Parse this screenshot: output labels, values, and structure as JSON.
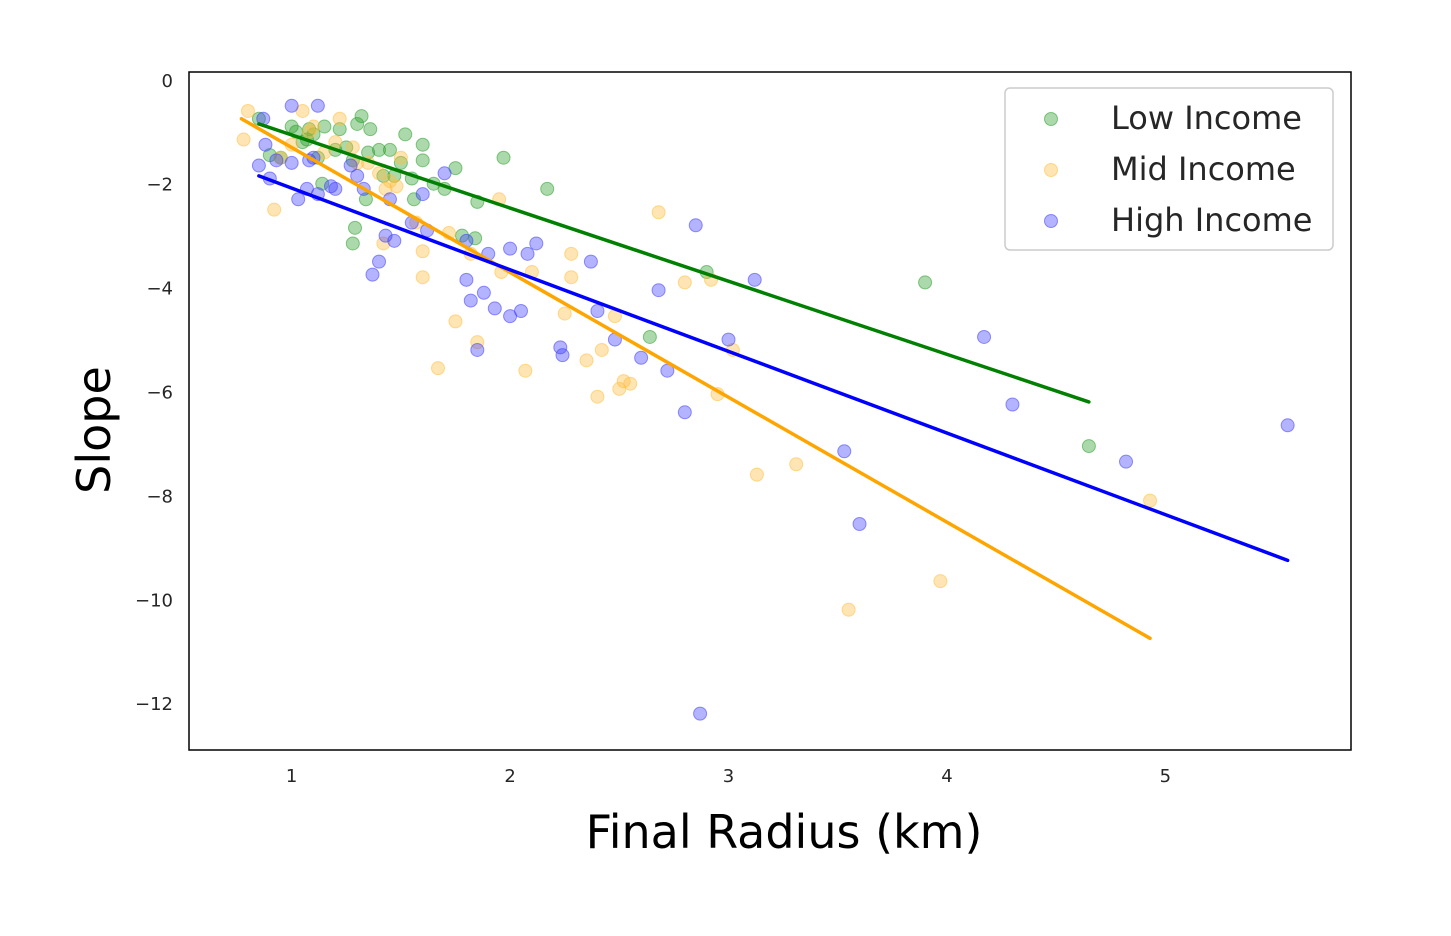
{
  "chart_data": {
    "type": "scatter",
    "title": "",
    "xlabel": "Final Radius (km)",
    "ylabel": "Slope",
    "xlim": [
      0.53,
      5.85
    ],
    "ylim": [
      -12.9,
      0.15
    ],
    "xticks": [
      1,
      2,
      3,
      4,
      5
    ],
    "yticks": [
      0,
      -2,
      -4,
      -6,
      -8,
      -10,
      -12
    ],
    "xtick_labels": [
      "1",
      "2",
      "3",
      "4",
      "5"
    ],
    "ytick_labels": [
      "0",
      "−2",
      "−4",
      "−6",
      "−8",
      "−10",
      "−12"
    ],
    "grid": false,
    "legend_position": "top-right",
    "series": [
      {
        "name": "Low Income",
        "color": "#008000",
        "point_color": "#2ca02c",
        "points": [
          [
            0.85,
            -0.75
          ],
          [
            0.9,
            -1.45
          ],
          [
            0.95,
            -1.5
          ],
          [
            1.0,
            -0.9
          ],
          [
            1.02,
            -1.0
          ],
          [
            1.05,
            -1.2
          ],
          [
            1.08,
            -0.95
          ],
          [
            1.1,
            -1.05
          ],
          [
            1.12,
            -1.5
          ],
          [
            1.15,
            -0.9
          ],
          [
            1.2,
            -1.35
          ],
          [
            1.22,
            -0.95
          ],
          [
            1.25,
            -1.3
          ],
          [
            1.28,
            -1.55
          ],
          [
            1.3,
            -0.85
          ],
          [
            1.32,
            -0.7
          ],
          [
            1.35,
            -1.4
          ],
          [
            1.36,
            -0.95
          ],
          [
            1.4,
            -1.35
          ],
          [
            1.42,
            -1.85
          ],
          [
            1.45,
            -1.35
          ],
          [
            1.47,
            -1.85
          ],
          [
            1.5,
            -1.6
          ],
          [
            1.52,
            -1.05
          ],
          [
            1.55,
            -1.9
          ],
          [
            1.56,
            -2.3
          ],
          [
            1.6,
            -1.25
          ],
          [
            1.6,
            -1.55
          ],
          [
            1.65,
            -2.0
          ],
          [
            1.7,
            -2.1
          ],
          [
            1.75,
            -1.7
          ],
          [
            1.78,
            -3.0
          ],
          [
            1.84,
            -3.05
          ],
          [
            1.85,
            -2.35
          ],
          [
            1.97,
            -1.5
          ],
          [
            2.17,
            -2.1
          ],
          [
            1.28,
            -3.15
          ],
          [
            1.29,
            -2.85
          ],
          [
            1.34,
            -2.3
          ],
          [
            2.64,
            -4.95
          ],
          [
            2.9,
            -3.7
          ],
          [
            3.9,
            -3.9
          ],
          [
            4.65,
            -7.05
          ],
          [
            1.07,
            -1.15
          ],
          [
            1.14,
            -2.0
          ]
        ],
        "fit": [
          [
            0.85,
            -0.85
          ],
          [
            4.65,
            -6.2
          ]
        ]
      },
      {
        "name": "Mid Income",
        "color": "#ffa500",
        "point_color": "#ffbf40",
        "points": [
          [
            0.78,
            -1.15
          ],
          [
            0.8,
            -0.6
          ],
          [
            0.92,
            -2.5
          ],
          [
            0.95,
            -1.5
          ],
          [
            1.05,
            -0.6
          ],
          [
            1.08,
            -1.0
          ],
          [
            1.1,
            -0.9
          ],
          [
            1.15,
            -1.4
          ],
          [
            1.2,
            -1.2
          ],
          [
            1.22,
            -0.75
          ],
          [
            1.28,
            -1.3
          ],
          [
            1.35,
            -1.6
          ],
          [
            1.4,
            -1.8
          ],
          [
            1.42,
            -3.15
          ],
          [
            1.43,
            -2.1
          ],
          [
            1.45,
            -1.95
          ],
          [
            1.5,
            -1.5
          ],
          [
            1.57,
            -2.75
          ],
          [
            1.6,
            -3.3
          ],
          [
            1.6,
            -3.8
          ],
          [
            1.67,
            -5.55
          ],
          [
            1.72,
            -2.95
          ],
          [
            1.75,
            -4.65
          ],
          [
            1.82,
            -3.35
          ],
          [
            1.85,
            -5.05
          ],
          [
            1.95,
            -2.3
          ],
          [
            1.96,
            -3.7
          ],
          [
            2.07,
            -5.6
          ],
          [
            2.1,
            -3.7
          ],
          [
            2.25,
            -4.5
          ],
          [
            2.28,
            -3.35
          ],
          [
            2.28,
            -3.8
          ],
          [
            2.35,
            -5.4
          ],
          [
            2.4,
            -6.1
          ],
          [
            2.42,
            -5.2
          ],
          [
            2.48,
            -4.55
          ],
          [
            2.5,
            -5.95
          ],
          [
            2.52,
            -5.8
          ],
          [
            2.55,
            -5.85
          ],
          [
            2.68,
            -2.55
          ],
          [
            2.8,
            -3.9
          ],
          [
            2.92,
            -3.85
          ],
          [
            2.95,
            -6.05
          ],
          [
            3.02,
            -5.2
          ],
          [
            3.13,
            -7.6
          ],
          [
            3.31,
            -7.4
          ],
          [
            3.55,
            -10.2
          ],
          [
            3.97,
            -9.65
          ],
          [
            4.93,
            -8.1
          ],
          [
            1.0,
            -1.25
          ],
          [
            1.3,
            -1.6
          ],
          [
            1.48,
            -2.05
          ]
        ],
        "fit": [
          [
            0.77,
            -0.75
          ],
          [
            4.93,
            -10.75
          ]
        ]
      },
      {
        "name": "High Income",
        "color": "#0000ff",
        "point_color": "#4040ff",
        "points": [
          [
            0.85,
            -1.65
          ],
          [
            0.87,
            -0.75
          ],
          [
            0.88,
            -1.25
          ],
          [
            0.9,
            -1.9
          ],
          [
            0.93,
            -1.55
          ],
          [
            1.0,
            -0.5
          ],
          [
            1.0,
            -1.6
          ],
          [
            1.03,
            -2.3
          ],
          [
            1.07,
            -2.1
          ],
          [
            1.08,
            -1.55
          ],
          [
            1.1,
            -1.5
          ],
          [
            1.12,
            -0.5
          ],
          [
            1.12,
            -2.2
          ],
          [
            1.18,
            -2.05
          ],
          [
            1.2,
            -2.1
          ],
          [
            1.27,
            -1.65
          ],
          [
            1.3,
            -1.85
          ],
          [
            1.33,
            -2.1
          ],
          [
            1.37,
            -3.75
          ],
          [
            1.4,
            -3.5
          ],
          [
            1.43,
            -3.0
          ],
          [
            1.45,
            -2.3
          ],
          [
            1.47,
            -3.1
          ],
          [
            1.55,
            -2.75
          ],
          [
            1.6,
            -2.2
          ],
          [
            1.62,
            -2.9
          ],
          [
            1.7,
            -1.8
          ],
          [
            1.8,
            -3.85
          ],
          [
            1.8,
            -3.1
          ],
          [
            1.82,
            -4.25
          ],
          [
            1.85,
            -5.2
          ],
          [
            1.88,
            -4.1
          ],
          [
            1.9,
            -3.35
          ],
          [
            1.93,
            -4.4
          ],
          [
            2.0,
            -4.55
          ],
          [
            2.0,
            -3.25
          ],
          [
            2.05,
            -4.45
          ],
          [
            2.08,
            -3.35
          ],
          [
            2.12,
            -3.15
          ],
          [
            2.23,
            -5.15
          ],
          [
            2.24,
            -5.3
          ],
          [
            2.37,
            -3.5
          ],
          [
            2.4,
            -4.45
          ],
          [
            2.48,
            -5.0
          ],
          [
            2.6,
            -5.35
          ],
          [
            2.68,
            -4.05
          ],
          [
            2.72,
            -5.6
          ],
          [
            2.8,
            -6.4
          ],
          [
            2.85,
            -2.8
          ],
          [
            2.87,
            -12.2
          ],
          [
            3.0,
            -5.0
          ],
          [
            3.12,
            -3.85
          ],
          [
            3.53,
            -7.15
          ],
          [
            3.6,
            -8.55
          ],
          [
            4.17,
            -4.95
          ],
          [
            4.3,
            -6.25
          ],
          [
            4.82,
            -7.35
          ],
          [
            5.56,
            -6.65
          ]
        ],
        "fit": [
          [
            0.85,
            -1.85
          ],
          [
            5.56,
            -9.25
          ]
        ]
      }
    ]
  }
}
